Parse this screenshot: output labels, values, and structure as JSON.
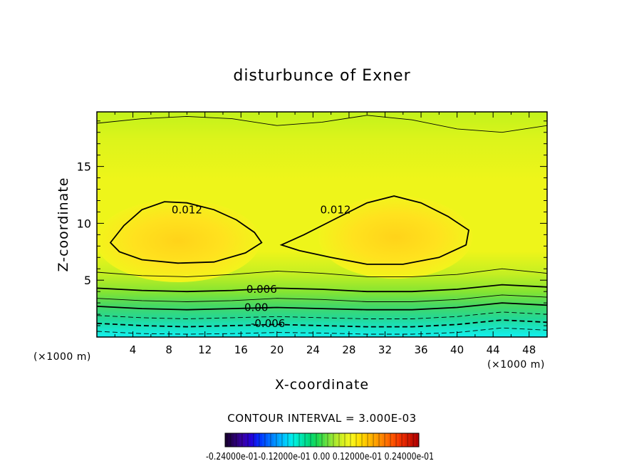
{
  "chart_data": {
    "type": "heatmap",
    "title": "disturbunce of Exner",
    "xlabel": "X-coordinate",
    "ylabel": "Z-coordinate",
    "x_unit_label_left": "(×1000 m)",
    "x_unit_label_right": "(×1000 m)",
    "xlim": [
      0,
      50
    ],
    "ylim": [
      0,
      19.8
    ],
    "x_ticks": [
      4,
      8,
      12,
      16,
      20,
      24,
      28,
      32,
      36,
      40,
      44,
      48
    ],
    "y_ticks": [
      5,
      10,
      15
    ],
    "contour_interval_text": "CONTOUR INTERVAL = 3.000E-03",
    "contour_labels": [
      {
        "text": "0.012",
        "x": 10,
        "z": 11.2
      },
      {
        "text": "0.012",
        "x": 26.5,
        "z": 11.2
      },
      {
        "text": "0.006",
        "x": 18.3,
        "z": 4.2
      },
      {
        "text": "0.00",
        "x": 17.7,
        "z": 2.6
      },
      {
        "text": "-0.006",
        "x": 19.0,
        "z": 1.2
      }
    ],
    "contours": [
      {
        "level": 0.012,
        "style": "solid",
        "bold": true,
        "closed": true,
        "points": [
          [
            1.5,
            8.3
          ],
          [
            3,
            9.8
          ],
          [
            5,
            11.2
          ],
          [
            7.5,
            11.9
          ],
          [
            10,
            11.8
          ],
          [
            13,
            11.2
          ],
          [
            15.5,
            10.3
          ],
          [
            17.5,
            9.2
          ],
          [
            18.3,
            8.3
          ],
          [
            16.5,
            7.4
          ],
          [
            13,
            6.6
          ],
          [
            9,
            6.5
          ],
          [
            5,
            6.8
          ],
          [
            2.5,
            7.5
          ],
          [
            1.5,
            8.3
          ]
        ]
      },
      {
        "level": 0.012,
        "style": "solid",
        "bold": true,
        "closed": true,
        "points": [
          [
            20.5,
            8.1
          ],
          [
            23,
            9.0
          ],
          [
            26.5,
            10.4
          ],
          [
            30,
            11.8
          ],
          [
            33,
            12.4
          ],
          [
            36,
            11.8
          ],
          [
            39,
            10.6
          ],
          [
            41.3,
            9.4
          ],
          [
            41.0,
            8.1
          ],
          [
            38,
            7.0
          ],
          [
            34,
            6.4
          ],
          [
            30,
            6.4
          ],
          [
            26,
            7.0
          ],
          [
            22.5,
            7.6
          ],
          [
            20.5,
            8.1
          ]
        ]
      },
      {
        "level": 0.015,
        "style": "solid",
        "bold": false,
        "closed": false,
        "points": [
          [
            0,
            18.8
          ],
          [
            5,
            19.2
          ],
          [
            10,
            19.4
          ],
          [
            15,
            19.2
          ],
          [
            20,
            18.6
          ],
          [
            25,
            18.9
          ],
          [
            30,
            19.5
          ],
          [
            35,
            19.1
          ],
          [
            40,
            18.3
          ],
          [
            45,
            18.0
          ],
          [
            50,
            18.6
          ]
        ]
      },
      {
        "level": 0.009,
        "style": "solid",
        "bold": false,
        "closed": false,
        "points": [
          [
            0,
            5.7
          ],
          [
            5,
            5.4
          ],
          [
            10,
            5.3
          ],
          [
            15,
            5.5
          ],
          [
            20,
            5.8
          ],
          [
            25,
            5.6
          ],
          [
            30,
            5.3
          ],
          [
            35,
            5.3
          ],
          [
            40,
            5.5
          ],
          [
            45,
            6.0
          ],
          [
            50,
            5.6
          ]
        ]
      },
      {
        "level": 0.006,
        "style": "solid",
        "bold": true,
        "closed": false,
        "points": [
          [
            0,
            4.3
          ],
          [
            5,
            4.1
          ],
          [
            10,
            4.0
          ],
          [
            15,
            4.1
          ],
          [
            20,
            4.3
          ],
          [
            25,
            4.2
          ],
          [
            30,
            4.0
          ],
          [
            35,
            4.0
          ],
          [
            40,
            4.2
          ],
          [
            45,
            4.6
          ],
          [
            50,
            4.4
          ]
        ]
      },
      {
        "level": 0.003,
        "style": "solid",
        "bold": false,
        "closed": false,
        "points": [
          [
            0,
            3.4
          ],
          [
            5,
            3.2
          ],
          [
            10,
            3.1
          ],
          [
            15,
            3.2
          ],
          [
            20,
            3.4
          ],
          [
            25,
            3.3
          ],
          [
            30,
            3.1
          ],
          [
            35,
            3.1
          ],
          [
            40,
            3.3
          ],
          [
            45,
            3.7
          ],
          [
            50,
            3.5
          ]
        ]
      },
      {
        "level": 0.0,
        "style": "solid",
        "bold": true,
        "closed": false,
        "points": [
          [
            0,
            2.7
          ],
          [
            5,
            2.5
          ],
          [
            10,
            2.4
          ],
          [
            15,
            2.5
          ],
          [
            20,
            2.6
          ],
          [
            25,
            2.5
          ],
          [
            30,
            2.4
          ],
          [
            35,
            2.4
          ],
          [
            40,
            2.6
          ],
          [
            45,
            3.0
          ],
          [
            50,
            2.8
          ]
        ]
      },
      {
        "level": -0.003,
        "style": "dashed",
        "bold": false,
        "closed": false,
        "points": [
          [
            0,
            1.9
          ],
          [
            5,
            1.7
          ],
          [
            10,
            1.6
          ],
          [
            15,
            1.7
          ],
          [
            20,
            1.8
          ],
          [
            25,
            1.7
          ],
          [
            30,
            1.6
          ],
          [
            35,
            1.6
          ],
          [
            40,
            1.8
          ],
          [
            45,
            2.2
          ],
          [
            50,
            2.0
          ]
        ]
      },
      {
        "level": -0.006,
        "style": "dashed",
        "bold": true,
        "closed": false,
        "points": [
          [
            0,
            1.2
          ],
          [
            5,
            1.0
          ],
          [
            10,
            0.9
          ],
          [
            15,
            1.0
          ],
          [
            20,
            1.1
          ],
          [
            25,
            1.0
          ],
          [
            30,
            0.9
          ],
          [
            35,
            0.9
          ],
          [
            40,
            1.1
          ],
          [
            45,
            1.5
          ],
          [
            50,
            1.3
          ]
        ]
      },
      {
        "level": -0.009,
        "style": "dashed",
        "bold": false,
        "closed": false,
        "points": [
          [
            0,
            0.5
          ],
          [
            5,
            0.3
          ],
          [
            10,
            0.25
          ],
          [
            15,
            0.3
          ],
          [
            20,
            0.4
          ],
          [
            25,
            0.35
          ],
          [
            30,
            0.25
          ],
          [
            35,
            0.25
          ],
          [
            40,
            0.4
          ],
          [
            45,
            0.8
          ],
          [
            50,
            0.6
          ]
        ]
      }
    ],
    "colorbar": {
      "label_text": "-0.24000e-01-0.12000e-01  0.00  0.12000e-01  0.24000e-01",
      "colors": [
        "#1a0033",
        "#2a006b",
        "#3700a8",
        "#2200d8",
        "#0033ff",
        "#0066ff",
        "#0099ff",
        "#00c8ff",
        "#00f0e8",
        "#00e6b0",
        "#00d878",
        "#1fd850",
        "#66e040",
        "#a6e830",
        "#d6f020",
        "#f8f820",
        "#ffe000",
        "#ffc000",
        "#ffa000",
        "#ff7a00",
        "#ff5500",
        "#f03000",
        "#d01800",
        "#b00000"
      ]
    },
    "field_colors": {
      "bg": "#b9f21b",
      "band_yellow": "#eef51a",
      "core_yellow": "#ffe21e",
      "core_inner": "#ffd41a",
      "green_light": "#8ee82e",
      "green": "#3ed86a",
      "teal": "#18d8a6",
      "cyan": "#16ecf0"
    }
  }
}
